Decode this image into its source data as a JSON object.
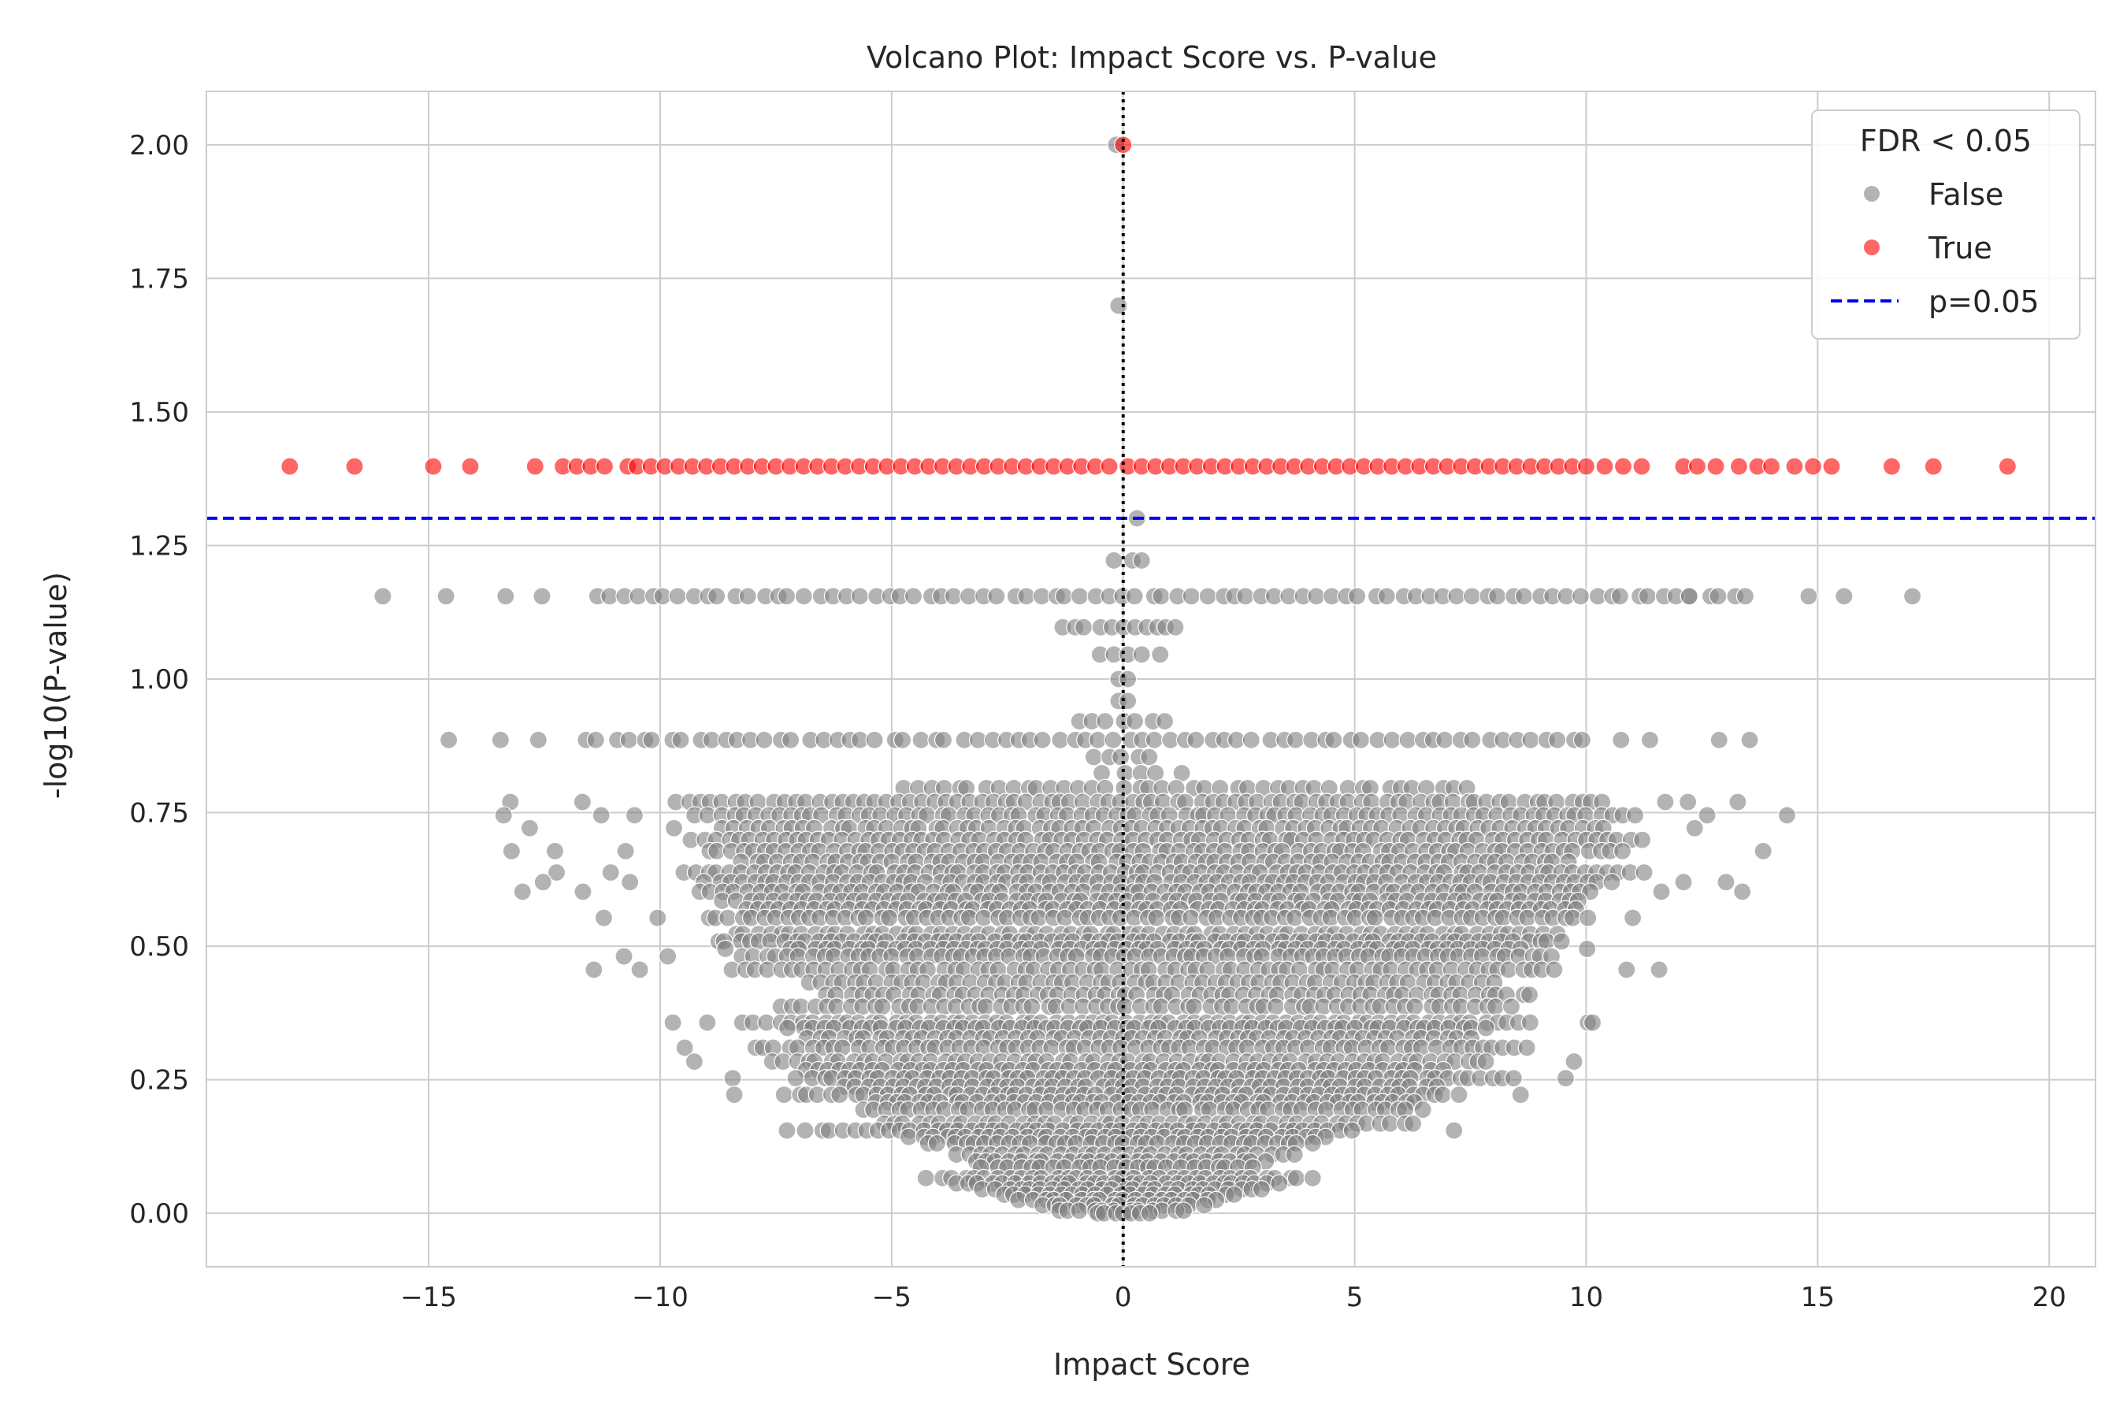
{
  "chart_data": {
    "type": "scatter",
    "title": "Volcano Plot: Impact Score vs. P-value",
    "xlabel": "Impact Score",
    "ylabel": "-log10(P-value)",
    "xlim": [
      -19.8,
      21.0
    ],
    "ylim": [
      -0.1,
      2.1
    ],
    "x_ticks": [
      -15,
      -10,
      -5,
      0,
      5,
      10,
      15,
      20
    ],
    "x_tick_labels": [
      "−15",
      "−10",
      "−5",
      "0",
      "5",
      "10",
      "15",
      "20"
    ],
    "y_ticks": [
      0.0,
      0.25,
      0.5,
      0.75,
      1.0,
      1.25,
      1.5,
      1.75,
      2.0
    ],
    "y_tick_labels": [
      "0.00",
      "0.25",
      "0.50",
      "0.75",
      "1.00",
      "1.25",
      "1.50",
      "1.75",
      "2.00"
    ],
    "grid": true,
    "threshold_line": {
      "y": 1.301,
      "label": "p=0.05",
      "color": "#0000ff",
      "style": "dashed"
    },
    "center_line": {
      "x": 0,
      "color": "#000000",
      "style": "dotted"
    },
    "legend": {
      "title": "FDR < 0.05",
      "placement": "top-right",
      "entries": [
        {
          "label": "False",
          "color": "#808080"
        },
        {
          "label": "True",
          "color": "#ff0000"
        },
        {
          "label": "p=0.05",
          "color": "#0000ff"
        }
      ]
    },
    "series": [
      {
        "name": "True",
        "color": "#ff0000",
        "points": [
          [
            -18.0,
            1.398
          ],
          [
            -16.6,
            1.398
          ],
          [
            -14.9,
            1.398
          ],
          [
            -14.1,
            1.398
          ],
          [
            -12.7,
            1.398
          ],
          [
            -12.1,
            1.398
          ],
          [
            -11.8,
            1.398
          ],
          [
            -11.5,
            1.398
          ],
          [
            -11.2,
            1.398
          ],
          [
            -10.7,
            1.398
          ],
          [
            -10.5,
            1.398
          ],
          [
            -10.2,
            1.398
          ],
          [
            -9.9,
            1.398
          ],
          [
            -9.6,
            1.398
          ],
          [
            -9.3,
            1.398
          ],
          [
            -9.0,
            1.398
          ],
          [
            -8.7,
            1.398
          ],
          [
            -8.4,
            1.398
          ],
          [
            -8.1,
            1.398
          ],
          [
            -7.8,
            1.398
          ],
          [
            -7.5,
            1.398
          ],
          [
            -7.2,
            1.398
          ],
          [
            -6.9,
            1.398
          ],
          [
            -6.6,
            1.398
          ],
          [
            -6.3,
            1.398
          ],
          [
            -6.0,
            1.398
          ],
          [
            -5.7,
            1.398
          ],
          [
            -5.4,
            1.398
          ],
          [
            -5.1,
            1.398
          ],
          [
            -4.8,
            1.398
          ],
          [
            -4.5,
            1.398
          ],
          [
            -4.2,
            1.398
          ],
          [
            -3.9,
            1.398
          ],
          [
            -3.6,
            1.398
          ],
          [
            -3.3,
            1.398
          ],
          [
            -3.0,
            1.398
          ],
          [
            -2.7,
            1.398
          ],
          [
            -2.4,
            1.398
          ],
          [
            -2.1,
            1.398
          ],
          [
            -1.8,
            1.398
          ],
          [
            -1.5,
            1.398
          ],
          [
            -1.2,
            1.398
          ],
          [
            -0.9,
            1.398
          ],
          [
            -0.6,
            1.398
          ],
          [
            -0.3,
            1.398
          ],
          [
            0.0,
            2.0
          ],
          [
            0.1,
            1.398
          ],
          [
            0.4,
            1.398
          ],
          [
            0.7,
            1.398
          ],
          [
            1.0,
            1.398
          ],
          [
            1.3,
            1.398
          ],
          [
            1.6,
            1.398
          ],
          [
            1.9,
            1.398
          ],
          [
            2.2,
            1.398
          ],
          [
            2.5,
            1.398
          ],
          [
            2.8,
            1.398
          ],
          [
            3.1,
            1.398
          ],
          [
            3.4,
            1.398
          ],
          [
            3.7,
            1.398
          ],
          [
            4.0,
            1.398
          ],
          [
            4.3,
            1.398
          ],
          [
            4.6,
            1.398
          ],
          [
            4.9,
            1.398
          ],
          [
            5.2,
            1.398
          ],
          [
            5.5,
            1.398
          ],
          [
            5.8,
            1.398
          ],
          [
            6.1,
            1.398
          ],
          [
            6.4,
            1.398
          ],
          [
            6.7,
            1.398
          ],
          [
            7.0,
            1.398
          ],
          [
            7.3,
            1.398
          ],
          [
            7.6,
            1.398
          ],
          [
            7.9,
            1.398
          ],
          [
            8.2,
            1.398
          ],
          [
            8.5,
            1.398
          ],
          [
            8.8,
            1.398
          ],
          [
            9.1,
            1.398
          ],
          [
            9.4,
            1.398
          ],
          [
            9.7,
            1.398
          ],
          [
            10.0,
            1.398
          ],
          [
            10.4,
            1.398
          ],
          [
            10.8,
            1.398
          ],
          [
            11.2,
            1.398
          ],
          [
            12.1,
            1.398
          ],
          [
            12.4,
            1.398
          ],
          [
            12.8,
            1.398
          ],
          [
            13.3,
            1.398
          ],
          [
            13.7,
            1.398
          ],
          [
            14.0,
            1.398
          ],
          [
            14.5,
            1.398
          ],
          [
            14.9,
            1.398
          ],
          [
            15.3,
            1.398
          ],
          [
            16.6,
            1.398
          ],
          [
            17.5,
            1.398
          ],
          [
            19.1,
            1.398
          ]
        ]
      }
    ],
    "false_series": {
      "name": "False",
      "color": "#808080",
      "rows": [
        {
          "y": 1.301,
          "xs": [
            0.3
          ]
        },
        {
          "y": 1.222,
          "xs": [
            -0.2,
            0.2,
            0.4
          ]
        },
        {
          "y": 1.155,
          "outliers": [
            -15.9,
            -14.7,
            -13.3,
            -12.5,
            12.2,
            14.8,
            15.6,
            17.0
          ],
          "from": -11.4,
          "to": 13.6,
          "step": 0.3
        },
        {
          "y": 1.097,
          "from": -1.3,
          "to": 1.4,
          "step": 0.25
        },
        {
          "y": 1.046,
          "xs": [
            -0.5,
            -0.2,
            0.1,
            0.4,
            0.8
          ]
        },
        {
          "y": 1.0,
          "xs": [
            -0.1,
            0.1
          ]
        },
        {
          "y": 0.959,
          "xs": [
            -0.1,
            0.1
          ]
        },
        {
          "y": 0.921,
          "from": -0.9,
          "to": 0.9,
          "step": 0.3
        },
        {
          "y": 0.886,
          "outliers": [
            -14.6,
            -13.4,
            -12.7,
            10.8,
            11.4,
            12.8,
            13.6
          ],
          "from": -11.6,
          "to": 10.0,
          "step": 0.3
        },
        {
          "y": 0.854,
          "from": -0.6,
          "to": 0.6,
          "step": 0.3
        },
        {
          "y": 0.824,
          "from": -0.4,
          "to": 1.4,
          "step": 0.4
        },
        {
          "y": 0.796,
          "from": -4.8,
          "to": 7.6,
          "step": 0.3
        },
        {
          "y": 0.77,
          "outliers": [
            -13.2,
            -11.7,
            11.7,
            12.2,
            13.2
          ],
          "from": -9.6,
          "to": 10.6,
          "step": 0.25
        },
        {
          "y": 0.745,
          "outliers": [
            -13.4,
            -11.2,
            -10.6,
            12.6,
            14.3
          ],
          "from": -9.2,
          "to": 11.2,
          "step": 0.25
        },
        {
          "y": 0.721,
          "outliers": [
            -12.8,
            -9.7,
            12.4
          ],
          "from": -8.6,
          "to": 10.4,
          "step": 0.25
        },
        {
          "y": 0.699,
          "from": -9.3,
          "to": 11.2,
          "step": 0.25
        },
        {
          "y": 0.678,
          "outliers": [
            -13.2,
            -12.2,
            -10.8,
            13.8
          ],
          "from": -9.0,
          "to": 10.8,
          "step": 0.25
        },
        {
          "y": 0.658,
          "from": -8.2,
          "to": 9.6,
          "step": 0.25
        },
        {
          "y": 0.638,
          "outliers": [
            -12.3,
            -11.1
          ],
          "from": -9.5,
          "to": 11.4,
          "step": 0.25
        },
        {
          "y": 0.62,
          "outliers": [
            -12.6,
            -10.6,
            12.1,
            13.0
          ],
          "from": -9.0,
          "to": 10.6,
          "step": 0.25
        },
        {
          "y": 0.602,
          "outliers": [
            -12.9,
            -11.6,
            11.6,
            13.3
          ],
          "from": -9.1,
          "to": 10.2,
          "step": 0.25
        },
        {
          "y": 0.585,
          "from": -8.6,
          "to": 10.0,
          "step": 0.25
        },
        {
          "y": 0.569,
          "from": -8.2,
          "to": 10.0,
          "step": 0.25
        },
        {
          "y": 0.553,
          "outliers": [
            -11.2,
            -10.1,
            11.0
          ],
          "from": -9.0,
          "to": 10.0,
          "step": 0.25
        },
        {
          "y": 0.523,
          "from": -8.4,
          "to": 9.4,
          "step": 0.25
        },
        {
          "y": 0.509,
          "from": -8.8,
          "to": 9.6,
          "step": 0.25
        },
        {
          "y": 0.495,
          "outliers": [
            -8.6,
            10.0
          ],
          "from": -7.2,
          "to": 8.6,
          "step": 0.25
        },
        {
          "y": 0.481,
          "outliers": [
            -10.8,
            -9.8
          ],
          "from": -8.2,
          "to": 9.4,
          "step": 0.25
        },
        {
          "y": 0.456,
          "outliers": [
            -11.5,
            -10.5,
            10.8,
            11.6
          ],
          "from": -8.4,
          "to": 9.5,
          "step": 0.25
        },
        {
          "y": 0.432,
          "from": -6.8,
          "to": 8.0,
          "step": 0.25
        },
        {
          "y": 0.409,
          "from": -6.4,
          "to": 9.0,
          "step": 0.25
        },
        {
          "y": 0.387,
          "from": -7.4,
          "to": 8.4,
          "step": 0.25
        },
        {
          "y": 0.357,
          "outliers": [
            -9.7,
            -9.0,
            10.0,
            10.2
          ],
          "from": -8.2,
          "to": 8.8,
          "step": 0.25
        },
        {
          "y": 0.347,
          "from": -7.2,
          "to": 7.8,
          "step": 0.25
        },
        {
          "y": 0.328,
          "from": -6.8,
          "to": 7.6,
          "step": 0.25
        },
        {
          "y": 0.31,
          "outliers": [
            -9.5
          ],
          "from": -8.0,
          "to": 8.8,
          "step": 0.25
        },
        {
          "y": 0.284,
          "outliers": [
            -9.2,
            9.8
          ],
          "from": -7.6,
          "to": 8.0,
          "step": 0.25
        },
        {
          "y": 0.268,
          "from": -6.9,
          "to": 7.0,
          "step": 0.25
        },
        {
          "y": 0.253,
          "outliers": [
            -8.4,
            9.6
          ],
          "from": -7.0,
          "to": 8.6,
          "step": 0.25
        },
        {
          "y": 0.237,
          "from": -6.0,
          "to": 6.8,
          "step": 0.25
        },
        {
          "y": 0.222,
          "outliers": [
            -8.4,
            8.6
          ],
          "from": -7.3,
          "to": 7.4,
          "step": 0.25
        },
        {
          "y": 0.208,
          "from": -5.4,
          "to": 6.4,
          "step": 0.25
        },
        {
          "y": 0.194,
          "from": -5.6,
          "to": 6.6,
          "step": 0.25
        },
        {
          "y": 0.168,
          "from": -5.2,
          "to": 6.4,
          "step": 0.25
        },
        {
          "y": 0.155,
          "outliers": [
            -7.3,
            7.2
          ],
          "from": -6.8,
          "to": 5.0,
          "step": 0.25
        },
        {
          "y": 0.143,
          "from": -4.6,
          "to": 4.6,
          "step": 0.25
        },
        {
          "y": 0.131,
          "from": -4.2,
          "to": 4.2,
          "step": 0.25
        },
        {
          "y": 0.11,
          "from": -3.6,
          "to": 3.8,
          "step": 0.25
        },
        {
          "y": 0.097,
          "from": -3.2,
          "to": 3.2,
          "step": 0.25
        },
        {
          "y": 0.086,
          "from": -3.0,
          "to": 2.8,
          "step": 0.25
        },
        {
          "y": 0.066,
          "from": -4.2,
          "to": 4.2,
          "step": 0.25
        },
        {
          "y": 0.056,
          "from": -3.6,
          "to": 3.6,
          "step": 0.25
        },
        {
          "y": 0.045,
          "from": -3.0,
          "to": 3.0,
          "step": 0.25
        },
        {
          "y": 0.035,
          "from": -2.6,
          "to": 2.6,
          "step": 0.25
        },
        {
          "y": 0.025,
          "from": -2.2,
          "to": 2.2,
          "step": 0.25
        },
        {
          "y": 0.015,
          "from": -1.8,
          "to": 1.8,
          "step": 0.25
        },
        {
          "y": 0.005,
          "from": -1.4,
          "to": 1.4,
          "step": 0.25
        },
        {
          "y": 0.0,
          "from": -0.6,
          "to": 0.6,
          "step": 0.2
        },
        {
          "y": 2.0,
          "xs": [
            -0.15
          ]
        },
        {
          "y": 1.699,
          "xs": [
            -0.1
          ]
        }
      ]
    }
  }
}
